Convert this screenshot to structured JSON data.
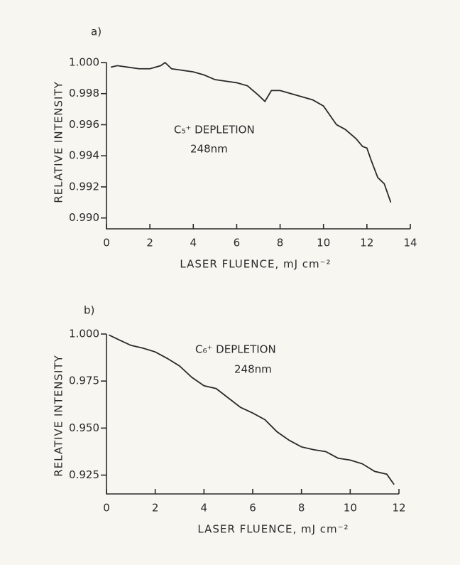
{
  "chart_data": [
    {
      "type": "line",
      "panel": "a)",
      "xlabel": "LASER FLUENCE, mJ cm⁻²",
      "ylabel": "RELATIVE INTENSITY",
      "annotations": [
        "C₅⁺ DEPLETION",
        "248nm"
      ],
      "color": "#2a2a2a",
      "xlim": [
        0,
        14
      ],
      "xticks": [
        0,
        2,
        4,
        6,
        8,
        10,
        12,
        14
      ],
      "ylim": [
        0.9893,
        1.0
      ],
      "yticks": [
        {
          "value": 0.99,
          "label": "0.990"
        },
        0.992,
        0.994,
        0.996,
        0.998,
        {
          "value": 1.0,
          "label": "1.000"
        }
      ],
      "x": [
        0.2,
        0.5,
        1,
        1.5,
        2,
        2.5,
        2.7,
        3,
        3.5,
        4,
        4.5,
        5,
        5.5,
        6,
        6.5,
        7,
        7.3,
        7.6,
        8,
        8.5,
        9,
        9.5,
        10,
        10.3,
        10.6,
        11,
        11.5,
        11.8,
        12,
        12.2,
        12.5,
        12.8,
        13.1
      ],
      "values": [
        0.9997,
        0.9998,
        0.9997,
        0.9996,
        0.9996,
        0.9998,
        1.0,
        0.9996,
        0.9995,
        0.9994,
        0.9992,
        0.9989,
        0.9988,
        0.9987,
        0.9985,
        0.9979,
        0.9975,
        0.9982,
        0.9982,
        0.998,
        0.9978,
        0.9976,
        0.9972,
        0.9966,
        0.996,
        0.9957,
        0.9951,
        0.9946,
        0.9945,
        0.9937,
        0.9926,
        0.9922,
        0.991
      ]
    },
    {
      "type": "line",
      "panel": "b)",
      "xlabel": "LASER FLUENCE, mJ cm⁻²",
      "ylabel": "RELATIVE INTENSITY",
      "annotations": [
        "C₆⁺ DEPLETION",
        "248nm"
      ],
      "color": "#2a2a2a",
      "xlim": [
        0,
        12
      ],
      "xticks": [
        0,
        2,
        4,
        6,
        8,
        10,
        12
      ],
      "ylim": [
        0.915,
        1.0
      ],
      "yticks": [
        0.925,
        {
          "value": 0.95,
          "label": "0.950"
        },
        0.975,
        {
          "value": 1.0,
          "label": "1.000"
        }
      ],
      "x": [
        0.1,
        0.5,
        1,
        1.5,
        2,
        2.5,
        3,
        3.5,
        4,
        4.5,
        5,
        5.5,
        6,
        6.5,
        7,
        7.5,
        8,
        8.5,
        9,
        9.5,
        10,
        10.5,
        11,
        11.5,
        11.8
      ],
      "values": [
        0.9995,
        0.997,
        0.994,
        0.9925,
        0.9905,
        0.987,
        0.983,
        0.977,
        0.9725,
        0.971,
        0.966,
        0.961,
        0.958,
        0.9545,
        0.948,
        0.9435,
        0.94,
        0.9385,
        0.9375,
        0.934,
        0.933,
        0.931,
        0.927,
        0.9255,
        0.92
      ]
    }
  ]
}
